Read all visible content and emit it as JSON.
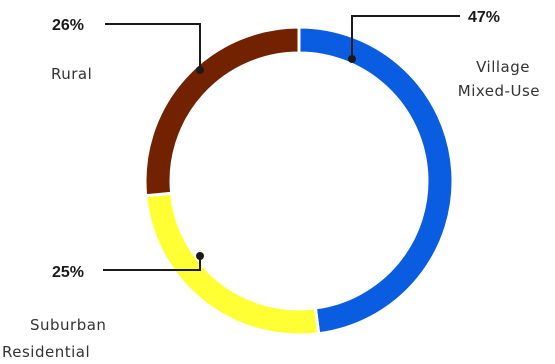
{
  "chart_data": {
    "type": "pie",
    "title": "",
    "slices": [
      {
        "label": "Village Mixed-Use",
        "label_lines": [
          "Village",
          "Mixed-Use"
        ],
        "value": 47,
        "value_label": "47%",
        "color": "#0a5ce0"
      },
      {
        "label": "Suburban Residential",
        "label_lines": [
          "Suburban",
          "Residential"
        ],
        "value": 25,
        "value_label": "25%",
        "color": "#ffff33"
      },
      {
        "label": "Rural",
        "label_lines": [
          "Rural"
        ],
        "value": 26,
        "value_label": "26%",
        "color": "#722200"
      }
    ]
  }
}
